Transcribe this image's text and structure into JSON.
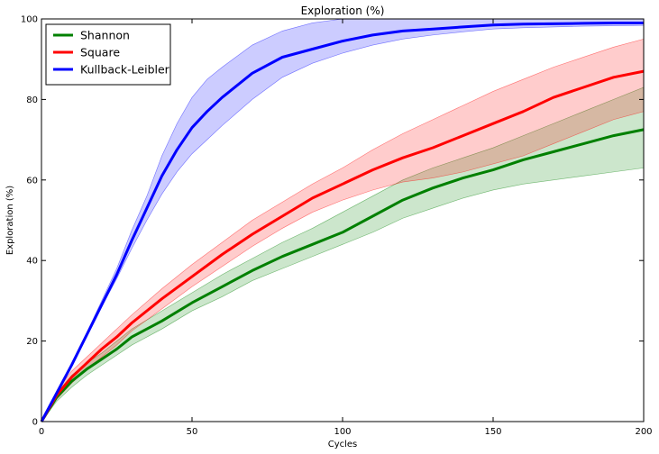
{
  "chart_data": {
    "type": "line",
    "title": "Exploration (%)",
    "xlabel": "Cycles",
    "ylabel": "Exploration (%)",
    "xlim": [
      0,
      200
    ],
    "ylim": [
      0,
      100
    ],
    "xticks": [
      0,
      50,
      100,
      150,
      200
    ],
    "yticks": [
      0,
      20,
      40,
      60,
      80,
      100
    ],
    "grid": false,
    "legend_position": "top-left",
    "series": [
      {
        "name": "Shannon",
        "color": "#008000",
        "x": [
          0,
          5,
          10,
          15,
          20,
          25,
          30,
          40,
          50,
          60,
          70,
          80,
          90,
          100,
          110,
          120,
          130,
          140,
          150,
          160,
          170,
          180,
          190,
          200
        ],
        "values": [
          0,
          6,
          10,
          13,
          15.5,
          18,
          21,
          25,
          29.5,
          33.5,
          37.5,
          41,
          44,
          47,
          51,
          55,
          58,
          60.5,
          62.5,
          65,
          67,
          69,
          71,
          72.5
        ],
        "lower": [
          0,
          5,
          8.5,
          11.5,
          14,
          16.5,
          19,
          23,
          27.5,
          31,
          35,
          38,
          41,
          44,
          47,
          50.5,
          53,
          55.5,
          57.5,
          59,
          60,
          61,
          62,
          63
        ],
        "upper": [
          0,
          7,
          11.5,
          14.5,
          17,
          20,
          23,
          27.5,
          32,
          36.5,
          40.5,
          44.5,
          48,
          52,
          56,
          60,
          63,
          65.5,
          68,
          71,
          74,
          77,
          80,
          83
        ]
      },
      {
        "name": "Square",
        "color": "#ff0000",
        "x": [
          0,
          5,
          10,
          15,
          20,
          25,
          30,
          40,
          50,
          60,
          70,
          80,
          90,
          100,
          110,
          120,
          130,
          140,
          150,
          160,
          170,
          180,
          190,
          200
        ],
        "values": [
          0,
          6.5,
          11,
          14.5,
          18,
          21,
          24.5,
          30.5,
          36,
          41.5,
          46.5,
          51,
          55.5,
          59,
          62.5,
          65.5,
          68,
          71,
          74,
          77,
          80.5,
          83,
          85.5,
          87
        ],
        "lower": [
          0,
          5.5,
          9.5,
          13,
          16,
          19,
          22.5,
          28,
          33.5,
          38.5,
          43.5,
          48,
          52,
          55,
          57.5,
          59.5,
          60.5,
          62,
          64,
          66,
          69,
          72,
          75,
          77
        ],
        "upper": [
          0,
          7.5,
          12.5,
          16,
          19.5,
          23,
          26.5,
          33,
          39,
          44.5,
          50,
          54.5,
          59,
          63,
          67.5,
          71.5,
          75,
          78.5,
          82,
          85,
          88,
          90.5,
          93,
          95
        ]
      },
      {
        "name": "Kullback-Leibler",
        "color": "#0000ff",
        "x": [
          0,
          5,
          10,
          15,
          20,
          25,
          30,
          35,
          40,
          45,
          50,
          55,
          60,
          70,
          80,
          90,
          100,
          110,
          120,
          130,
          140,
          150,
          160,
          170,
          180,
          190,
          200
        ],
        "values": [
          0,
          7,
          14,
          21.5,
          29,
          36.5,
          45,
          53,
          61,
          67.5,
          73,
          77,
          80.5,
          86.5,
          90.5,
          92.5,
          94.5,
          96,
          97,
          97.5,
          98,
          98.5,
          98.7,
          98.8,
          98.9,
          99,
          99
        ],
        "lower": [
          0,
          6.5,
          13.5,
          21,
          28.5,
          35.5,
          43,
          50,
          56.5,
          62,
          66.5,
          70,
          73.5,
          80,
          85.5,
          89,
          91.5,
          93.5,
          95,
          96,
          96.8,
          97.5,
          97.8,
          98,
          98.2,
          98.3,
          98.4
        ],
        "upper": [
          0,
          7.5,
          14.5,
          22,
          30,
          38,
          47.5,
          56,
          66,
          74,
          80.5,
          85,
          88,
          93.5,
          97,
          99,
          100,
          100,
          100,
          100,
          100,
          100,
          100,
          100,
          100,
          100,
          100
        ]
      }
    ]
  }
}
